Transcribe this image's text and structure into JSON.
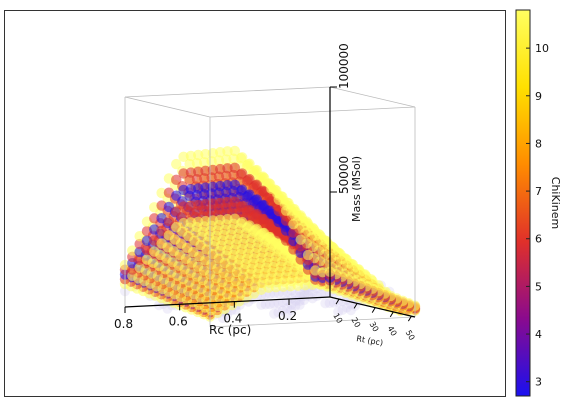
{
  "chart_data": {
    "type": "scatter",
    "projection": "3d",
    "axes": {
      "x": {
        "label": "Rc (pc)",
        "ticks": [
          "0.8",
          "0.6",
          "0.4",
          "0.2"
        ],
        "range": [
          0.05,
          0.8
        ]
      },
      "y": {
        "label": "Rt (pc)",
        "ticks": [
          "10",
          "20",
          "30",
          "40",
          "50"
        ],
        "range": [
          5,
          52
        ]
      },
      "z": {
        "label": "Mass (MSol)",
        "ticks": [
          "50000",
          "100000"
        ],
        "range": [
          0,
          100000
        ]
      }
    },
    "colorbar": {
      "label": "ChiKinem",
      "range": [
        2.7,
        10.8
      ],
      "ticks": [
        "3",
        "4",
        "5",
        "6",
        "7",
        "8",
        "9",
        "10"
      ],
      "colormap": [
        "#1a10f0",
        "#8a0a8e",
        "#e0302a",
        "#ff8c00",
        "#ffe000",
        "#ffff60"
      ]
    },
    "grid": false,
    "data_description_series": [
      {
        "kind": "fitted_surface",
        "mass_vs_Rc": {
          "Rc": [
            0.8,
            0.6,
            0.4,
            0.3,
            0.2,
            0.1
          ],
          "mass_top": [
            20000,
            70000,
            72000,
            60000,
            40000,
            12000
          ]
        },
        "chi_min": 2.8,
        "chi_max": 10.8
      },
      {
        "kind": "faint_background",
        "mass_range": [
          0,
          15000
        ],
        "chi": 10.5
      }
    ]
  }
}
